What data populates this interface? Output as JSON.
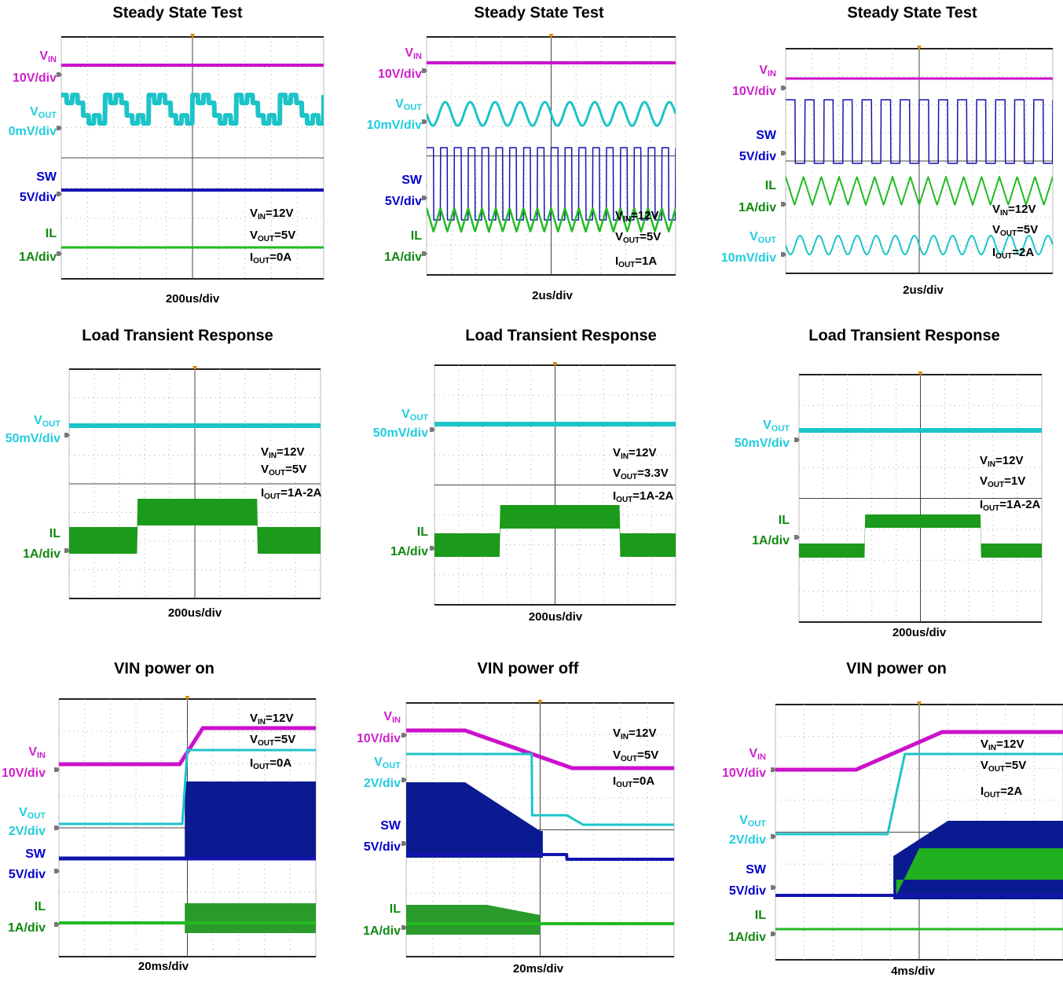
{
  "panels": [
    {
      "title": "Steady State Test",
      "timebase": "200us/div",
      "channels": [
        {
          "symbol": "V",
          "subscript": "IN",
          "scale": "10V/div",
          "color": "#cc22cc"
        },
        {
          "symbol": "V",
          "subscript": "OUT",
          "scale": "0mV/div",
          "color": "#22ccdd"
        },
        {
          "symbol": "SW",
          "scale": "5V/div",
          "color": "#0000cc"
        },
        {
          "symbol": "IL",
          "scale": "1A/div",
          "color": "#118811"
        }
      ],
      "conditions": [
        {
          "symbol": "V",
          "subscript": "IN",
          "value": "=12V"
        },
        {
          "symbol": "V",
          "subscript": "OUT",
          "value": "=5V"
        },
        {
          "symbol": "I",
          "subscript": "OUT",
          "value": "=0A"
        }
      ]
    },
    {
      "title": "Steady State Test",
      "timebase": "2us/div",
      "channels": [
        {
          "symbol": "V",
          "subscript": "IN",
          "scale": "10V/div",
          "color": "#cc22cc"
        },
        {
          "symbol": "V",
          "subscript": "OUT",
          "scale": "10mV/div",
          "color": "#22ccdd"
        },
        {
          "symbol": "SW",
          "scale": "5V/div",
          "color": "#0000cc"
        },
        {
          "symbol": "IL",
          "scale": "1A/div",
          "color": "#118811"
        }
      ],
      "conditions": [
        {
          "symbol": "V",
          "subscript": "IN",
          "value": "=12V"
        },
        {
          "symbol": "V",
          "subscript": "OUT",
          "value": "=5V"
        },
        {
          "symbol": "I",
          "subscript": "OUT",
          "value": "=1A"
        }
      ]
    },
    {
      "title": "Steady State Test",
      "timebase": "2us/div",
      "channels": [
        {
          "symbol": "V",
          "subscript": "IN",
          "scale": "10V/div",
          "color": "#cc22cc"
        },
        {
          "symbol": "SW",
          "scale": "5V/div",
          "color": "#0000cc"
        },
        {
          "symbol": "IL",
          "scale": "1A/div",
          "color": "#118811"
        },
        {
          "symbol": "V",
          "subscript": "OUT",
          "scale": "10mV/div",
          "color": "#22ccdd"
        }
      ],
      "conditions": [
        {
          "symbol": "V",
          "subscript": "IN",
          "value": "=12V"
        },
        {
          "symbol": "V",
          "subscript": "OUT",
          "value": "=5V"
        },
        {
          "symbol": "I",
          "subscript": "OUT",
          "value": "=2A"
        }
      ]
    },
    {
      "title": "Load Transient Response",
      "timebase": "200us/div",
      "channels": [
        {
          "symbol": "V",
          "subscript": "OUT",
          "scale": "50mV/div",
          "color": "#22ccdd"
        },
        {
          "symbol": "IL",
          "scale": "1A/div",
          "color": "#118811"
        }
      ],
      "conditions": [
        {
          "symbol": "V",
          "subscript": "IN",
          "value": "=12V"
        },
        {
          "symbol": "V",
          "subscript": "OUT",
          "value": "=5V"
        },
        {
          "symbol": "I",
          "subscript": "OUT",
          "value": "=1A-2A"
        }
      ]
    },
    {
      "title": "Load Transient Response",
      "timebase": "200us/div",
      "channels": [
        {
          "symbol": "V",
          "subscript": "OUT",
          "scale": "50mV/div",
          "color": "#22ccdd"
        },
        {
          "symbol": "IL",
          "scale": "1A/div",
          "color": "#118811"
        }
      ],
      "conditions": [
        {
          "symbol": "V",
          "subscript": "IN",
          "value": "=12V"
        },
        {
          "symbol": "V",
          "subscript": "OUT",
          "value": "=3.3V"
        },
        {
          "symbol": "I",
          "subscript": "OUT",
          "value": "=1A-2A"
        }
      ]
    },
    {
      "title": "Load Transient Response",
      "timebase": "200us/div",
      "channels": [
        {
          "symbol": "V",
          "subscript": "OUT",
          "scale": "50mV/div",
          "color": "#22ccdd"
        },
        {
          "symbol": "IL",
          "scale": "1A/div",
          "color": "#118811"
        }
      ],
      "conditions": [
        {
          "symbol": "V",
          "subscript": "IN",
          "value": "=12V"
        },
        {
          "symbol": "V",
          "subscript": "OUT",
          "value": "=1V"
        },
        {
          "symbol": "I",
          "subscript": "OUT",
          "value": "=1A-2A"
        }
      ]
    },
    {
      "title": "VIN power on",
      "timebase": "20ms/div",
      "channels": [
        {
          "symbol": "V",
          "subscript": "IN",
          "scale": "10V/div",
          "color": "#cc22cc"
        },
        {
          "symbol": "V",
          "subscript": "OUT",
          "scale": "2V/div",
          "color": "#22ccdd"
        },
        {
          "symbol": "SW",
          "scale": "5V/div",
          "color": "#0000cc"
        },
        {
          "symbol": "IL",
          "scale": "1A/div",
          "color": "#118811"
        }
      ],
      "conditions": [
        {
          "symbol": "V",
          "subscript": "IN",
          "value": "=12V"
        },
        {
          "symbol": "V",
          "subscript": "OUT",
          "value": "=5V"
        },
        {
          "symbol": "I",
          "subscript": "OUT",
          "value": "=0A"
        }
      ]
    },
    {
      "title": "VIN power off",
      "timebase": "20ms/div",
      "channels": [
        {
          "symbol": "V",
          "subscript": "IN",
          "scale": "10V/div",
          "color": "#cc22cc"
        },
        {
          "symbol": "V",
          "subscript": "OUT",
          "scale": "2V/div",
          "color": "#22ccdd"
        },
        {
          "symbol": "SW",
          "scale": "5V/div",
          "color": "#0000cc"
        },
        {
          "symbol": "IL",
          "scale": "1A/div",
          "color": "#118811"
        }
      ],
      "conditions": [
        {
          "symbol": "V",
          "subscript": "IN",
          "value": "=12V"
        },
        {
          "symbol": "V",
          "subscript": "OUT",
          "value": "=5V"
        },
        {
          "symbol": "I",
          "subscript": "OUT",
          "value": "=0A"
        }
      ]
    },
    {
      "title": "VIN power on",
      "timebase": "4ms/div",
      "channels": [
        {
          "symbol": "V",
          "subscript": "IN",
          "scale": "10V/div",
          "color": "#cc22cc"
        },
        {
          "symbol": "V",
          "subscript": "OUT",
          "scale": "2V/div",
          "color": "#22ccdd"
        },
        {
          "symbol": "SW",
          "scale": "5V/div",
          "color": "#0000cc"
        },
        {
          "symbol": "IL",
          "scale": "1A/div",
          "color": "#118811"
        }
      ],
      "conditions": [
        {
          "symbol": "V",
          "subscript": "IN",
          "value": "=12V"
        },
        {
          "symbol": "V",
          "subscript": "OUT",
          "value": "=5V"
        },
        {
          "symbol": "I",
          "subscript": "OUT",
          "value": "=2A"
        }
      ]
    }
  ]
}
